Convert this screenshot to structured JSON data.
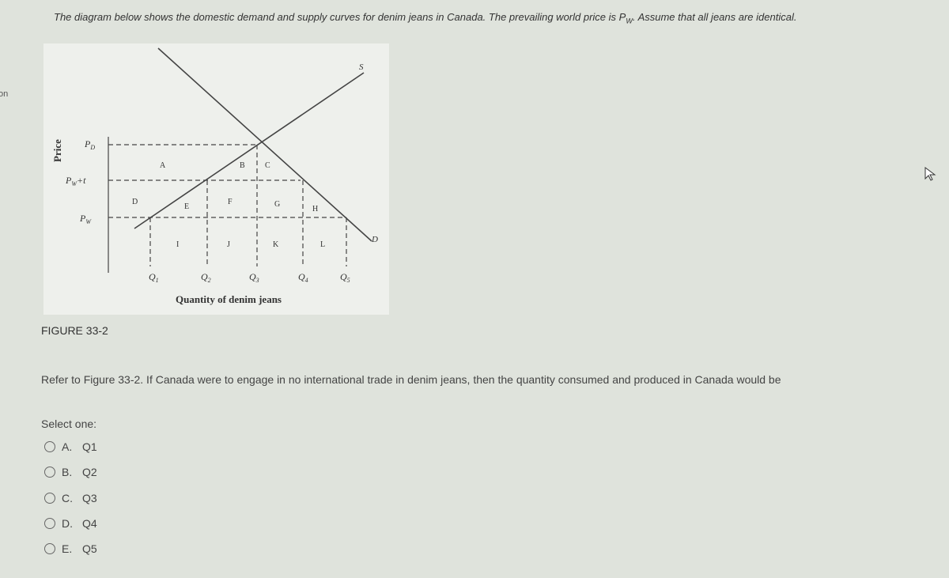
{
  "edge_text": "on",
  "intro": {
    "before": "The diagram below shows the domestic demand and supply curves for denim jeans in Canada. The prevailing world price is ",
    "symbol": "P",
    "subscript": "W",
    "after": ". Assume that all jeans are identical."
  },
  "figure": {
    "y_axis_label": "Price",
    "x_axis_label": "Quantity of denim jeans",
    "price_labels": [
      {
        "symbol": "P",
        "subscript": "D"
      },
      {
        "symbol": "P",
        "subscript": "W",
        "suffix": "+t"
      },
      {
        "symbol": "P",
        "subscript": "W"
      }
    ],
    "quantity_labels": [
      {
        "symbol": "Q",
        "subscript": "1"
      },
      {
        "symbol": "Q",
        "subscript": "2"
      },
      {
        "symbol": "Q",
        "subscript": "3"
      },
      {
        "symbol": "Q",
        "subscript": "4"
      },
      {
        "symbol": "Q",
        "subscript": "5"
      }
    ],
    "area_labels": [
      "A",
      "B",
      "C",
      "D",
      "E",
      "F",
      "G",
      "H",
      "I",
      "J",
      "K",
      "L"
    ],
    "supply_label": "S",
    "demand_label": "D",
    "caption": "FIGURE 33-2"
  },
  "question": "Refer to Figure 33-2. If Canada were to engage in no international trade in denim jeans, then the quantity consumed and produced in Canada would be",
  "select_prompt": "Select one:",
  "options": [
    {
      "letter": "A.",
      "text": "Q1"
    },
    {
      "letter": "B.",
      "text": "Q2"
    },
    {
      "letter": "C.",
      "text": "Q3"
    },
    {
      "letter": "D.",
      "text": "Q4"
    },
    {
      "letter": "E.",
      "text": "Q5"
    }
  ]
}
